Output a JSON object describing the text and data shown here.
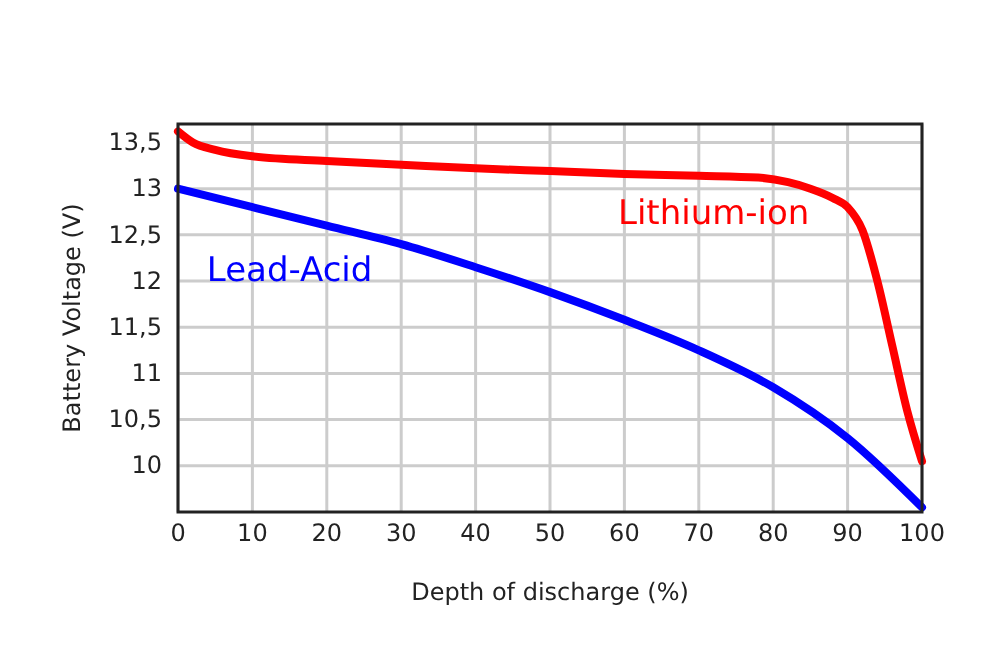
{
  "chart_data": {
    "type": "line",
    "xlabel": "Depth of discharge (%)",
    "ylabel": "Battery Voltage (V)",
    "xlim": [
      0,
      100
    ],
    "xticks": [
      0,
      10,
      20,
      30,
      40,
      50,
      60,
      70,
      80,
      90,
      100
    ],
    "ylim": [
      9.5,
      13.7
    ],
    "yticks": [
      {
        "value": 10,
        "label": "10"
      },
      {
        "value": 10.5,
        "label": "10,5"
      },
      {
        "value": 11,
        "label": "11"
      },
      {
        "value": 11.5,
        "label": "11,5"
      },
      {
        "value": 12,
        "label": "12"
      },
      {
        "value": 12.5,
        "label": "12,5"
      },
      {
        "value": 13,
        "label": "13"
      },
      {
        "value": 13.5,
        "label": "13,5"
      }
    ],
    "grid": true,
    "legend": false,
    "marker": "none",
    "line_style": "solid",
    "series": [
      {
        "name": "Lithium-ion",
        "color": "#ff0000",
        "x": [
          0,
          2,
          5,
          10,
          20,
          30,
          40,
          50,
          60,
          70,
          78,
          82,
          85,
          88,
          90,
          92,
          94,
          96,
          98,
          100
        ],
        "values": [
          13.62,
          13.5,
          13.42,
          13.35,
          13.3,
          13.26,
          13.22,
          13.19,
          13.16,
          13.14,
          13.12,
          13.07,
          13.0,
          12.9,
          12.8,
          12.55,
          12.0,
          11.3,
          10.6,
          10.05
        ]
      },
      {
        "name": "Lead-Acid",
        "color": "#0000ff",
        "x": [
          0,
          10,
          20,
          30,
          40,
          50,
          60,
          70,
          80,
          90,
          100
        ],
        "values": [
          13.0,
          12.8,
          12.6,
          12.4,
          12.15,
          11.88,
          11.58,
          11.25,
          10.85,
          10.3,
          9.55
        ]
      }
    ]
  }
}
